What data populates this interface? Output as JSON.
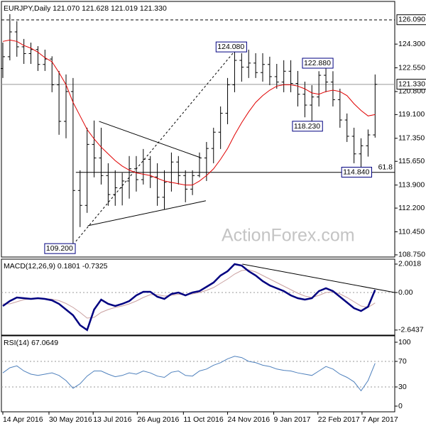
{
  "chart_data": [
    {
      "type": "candlestick",
      "title": "EURJPY,Daily  121.070 121.628 121.019 121.330",
      "watermark": "ActionForex.com",
      "x": [
        0,
        1,
        2,
        3,
        4,
        5,
        6,
        7,
        8,
        9,
        10,
        11,
        12,
        13,
        14,
        15,
        16,
        17,
        18,
        19,
        20,
        21,
        22,
        23,
        24,
        25,
        26,
        27,
        28,
        29,
        30,
        31,
        32,
        33,
        34,
        35,
        36,
        37,
        38,
        39,
        40,
        41,
        42,
        43,
        44,
        45,
        46,
        47,
        48,
        49,
        50,
        51,
        52,
        53
      ],
      "open": [
        122.5,
        123.37,
        125.2,
        124.1,
        123.6,
        123.9,
        122.8,
        123.2,
        121.3,
        118.6,
        120.8,
        113.5,
        112.4,
        116.9,
        115.9,
        114.6,
        113.2,
        113.7,
        114.2,
        115.1,
        114.3,
        115.8,
        114.5,
        113.0,
        114.1,
        115.6,
        114.6,
        113.6,
        114.6,
        115.9,
        116.6,
        117.8,
        119.2,
        121.3,
        123.1,
        122.6,
        122.9,
        122.2,
        122.8,
        121.9,
        121.5,
        122.3,
        121.4,
        120.6,
        119.8,
        120.4,
        122.0,
        121.5,
        120.2,
        118.7,
        117.5,
        116.2,
        116.8,
        117.6
      ],
      "high": [
        124.41,
        126.51,
        125.99,
        124.68,
        124.41,
        124.15,
        123.89,
        123.4,
        122.32,
        122.06,
        121.8,
        114.99,
        118.13,
        118.66,
        118.13,
        115.51,
        114.99,
        114.8,
        116.04,
        116.04,
        116.56,
        116.04,
        115.51,
        114.99,
        116.3,
        116.04,
        114.99,
        114.99,
        116.3,
        117.08,
        118.13,
        119.7,
        121.8,
        124.08,
        123.63,
        123.89,
        123.63,
        123.63,
        123.37,
        122.84,
        123.11,
        123.11,
        122.32,
        121.53,
        121.27,
        122.3,
        122.88,
        122.3,
        121.01,
        119.18,
        118.13,
        117.35,
        118.0,
        122.06
      ],
      "low": [
        121.8,
        123.1,
        123.37,
        122.84,
        122.84,
        122.32,
        122.32,
        120.75,
        117.61,
        117.35,
        109.2,
        110.8,
        111.85,
        114.47,
        113.94,
        112.37,
        112.37,
        112.4,
        112.9,
        113.42,
        113.94,
        113.68,
        112.37,
        112.11,
        113.42,
        113.94,
        112.63,
        113.16,
        114.47,
        114.2,
        115.51,
        116.56,
        118.39,
        120.75,
        121.53,
        121.8,
        121.8,
        121.53,
        121.27,
        121.01,
        120.75,
        120.75,
        119.7,
        118.9,
        118.23,
        119.7,
        120.75,
        119.7,
        118.13,
        117.08,
        115.51,
        114.84,
        116.0,
        117.4
      ],
      "close": [
        123.37,
        125.2,
        124.1,
        123.6,
        123.9,
        122.8,
        123.2,
        121.3,
        118.6,
        120.8,
        113.5,
        112.4,
        116.9,
        115.9,
        114.6,
        113.2,
        113.7,
        114.2,
        115.1,
        114.3,
        115.8,
        114.5,
        113.0,
        114.1,
        115.6,
        114.6,
        113.6,
        114.6,
        115.9,
        116.6,
        117.8,
        119.2,
        121.3,
        123.1,
        122.6,
        122.9,
        122.2,
        122.8,
        121.9,
        121.5,
        122.3,
        121.4,
        120.6,
        119.8,
        120.4,
        122.0,
        121.5,
        120.2,
        118.7,
        117.5,
        116.2,
        116.8,
        117.6,
        121.33
      ],
      "color": "#000000",
      "series": [
        {
          "color": "#e00000",
          "values": [
            124.5,
            124.6,
            124.5,
            124.2,
            124.0,
            123.7,
            123.3,
            123.0,
            122.2,
            121.3,
            120.0,
            119.0,
            118.0,
            117.3,
            116.7,
            116.2,
            115.7,
            115.3,
            115.0,
            114.8,
            114.7,
            114.6,
            114.4,
            114.2,
            114.1,
            114.0,
            113.9,
            113.9,
            114.2,
            114.6,
            115.1,
            115.8,
            116.6,
            117.6,
            118.5,
            119.3,
            120.0,
            120.5,
            120.9,
            121.2,
            121.3,
            121.3,
            121.2,
            121.0,
            120.7,
            120.6,
            120.8,
            120.9,
            120.8,
            120.5,
            119.9,
            119.4,
            119.0,
            119.1
          ]
        }
      ],
      "xlim": [
        -0.2,
        55.8
      ],
      "ylim": [
        108.59,
        127.45
      ],
      "yticks": [
        {
          "value": 124.3,
          "label": "124.300"
        },
        {
          "value": 122.55,
          "label": "122.550"
        },
        {
          "value": 120.8,
          "label": "120.800"
        },
        {
          "value": 119.1,
          "label": "119.100"
        },
        {
          "value": 117.35,
          "label": "117.350"
        },
        {
          "value": 115.65,
          "label": "115.650"
        },
        {
          "value": 113.9,
          "label": "113.900"
        },
        {
          "value": 112.2,
          "label": "112.200"
        },
        {
          "value": 110.45,
          "label": "110.450"
        },
        {
          "value": 108.75,
          "label": "108.750"
        }
      ],
      "hlines": [
        {
          "value": 126.09,
          "label": "126.090",
          "style": "dashed"
        },
        {
          "value": 121.33,
          "label": "121.330",
          "style": "gray"
        },
        {
          "value": 114.84,
          "start": 10.4,
          "label": "61.8",
          "style": "solid"
        }
      ],
      "annotations": [
        {
          "x": 34.7,
          "value": 124.08,
          "label": "124.080"
        },
        {
          "x": 47,
          "value": 122.88,
          "label": "122.880"
        },
        {
          "x": 45.5,
          "value": 118.23,
          "label": "118.230"
        },
        {
          "x": 52.5,
          "value": 114.84,
          "label": "114.840"
        },
        {
          "x": 10.3,
          "value": 109.2,
          "label": "109.200"
        }
      ],
      "trendlines": [
        {
          "x": [
            13.7,
            28.1
          ],
          "y": [
            118.6,
            115.93
          ]
        },
        {
          "x": [
            12.1,
            28.9
          ],
          "y": [
            110.9,
            112.74
          ]
        },
        {
          "x": [
            10.4,
            33.6
          ],
          "y": [
            109.75,
            124.15
          ],
          "dashed": true
        }
      ]
    },
    {
      "type": "line",
      "title": "MACD(12,26,9) 0.1801 -0.7325",
      "x": [
        0,
        1,
        2,
        3,
        4,
        5,
        6,
        7,
        8,
        9,
        10,
        11,
        12,
        13,
        14,
        15,
        16,
        17,
        18,
        19,
        20,
        21,
        22,
        23,
        24,
        25,
        26,
        27,
        28,
        29,
        30,
        31,
        32,
        33,
        34,
        35,
        36,
        37,
        38,
        39,
        40,
        41,
        42,
        43,
        44,
        45,
        46,
        47,
        48,
        49,
        50,
        51,
        52,
        53
      ],
      "series": [
        {
          "color": "#c9a0a0",
          "width": 1,
          "values": [
            -0.8,
            -0.8,
            -0.65,
            -0.5,
            -0.45,
            -0.43,
            -0.43,
            -0.47,
            -0.57,
            -0.77,
            -1.05,
            -1.4,
            -1.8,
            -1.75,
            -1.4,
            -1.2,
            -1.05,
            -0.95,
            -0.8,
            -0.6,
            -0.35,
            -0.15,
            -0.15,
            -0.25,
            -0.2,
            -0.12,
            -0.15,
            -0.1,
            0.0,
            0.15,
            0.35,
            0.65,
            0.95,
            1.3,
            1.55,
            1.6,
            1.45,
            1.2,
            0.95,
            0.7,
            0.45,
            0.2,
            -0.05,
            -0.25,
            -0.35,
            -0.2,
            0.0,
            0.05,
            -0.1,
            -0.35,
            -0.65,
            -0.95,
            -1.05,
            -0.7325
          ]
        },
        {
          "color": "#000080",
          "width": 2.5,
          "values": [
            -0.95,
            -0.6,
            -0.35,
            -0.4,
            -0.45,
            -0.4,
            -0.45,
            -0.55,
            -0.8,
            -1.2,
            -1.6,
            -2.3,
            -2.64,
            -1.2,
            -0.5,
            -0.8,
            -0.95,
            -0.8,
            -0.6,
            -0.2,
            0.05,
            0.05,
            -0.3,
            -0.45,
            -0.1,
            0.0,
            -0.2,
            0.0,
            0.1,
            0.4,
            0.7,
            1.2,
            1.5,
            2.0,
            1.9,
            1.5,
            1.2,
            0.8,
            0.5,
            0.3,
            0.1,
            -0.2,
            -0.4,
            -0.5,
            -0.4,
            0.1,
            0.3,
            0.1,
            -0.3,
            -0.7,
            -1.1,
            -1.3,
            -1.0,
            0.1801
          ]
        }
      ],
      "xlim": [
        -0.2,
        55.8
      ],
      "ylim": [
        -3.0,
        2.35
      ],
      "yticks": [
        2.0018,
        {
          "value": 0,
          "label": "0.00"
        },
        -2.6437
      ],
      "reference_lines": [
        0
      ],
      "trendlines": [
        {
          "x": [
            34.1,
            55.8
          ],
          "y": [
            2.0,
            0.0
          ]
        }
      ]
    },
    {
      "type": "line",
      "title": "RSI(14) 67.0649",
      "x": [
        0,
        1,
        2,
        3,
        4,
        5,
        6,
        7,
        8,
        9,
        10,
        11,
        12,
        13,
        14,
        15,
        16,
        17,
        18,
        19,
        20,
        21,
        22,
        23,
        24,
        25,
        26,
        27,
        28,
        29,
        30,
        31,
        32,
        33,
        34,
        35,
        36,
        37,
        38,
        39,
        40,
        41,
        42,
        43,
        44,
        45,
        46,
        47,
        48,
        49,
        50,
        51,
        52,
        53
      ],
      "series": [
        {
          "color": "#4f81bd",
          "width": 1,
          "values": [
            52,
            60,
            63,
            55,
            50,
            48,
            50,
            52,
            48,
            40,
            28,
            35,
            47,
            55,
            55,
            50,
            46,
            48,
            52,
            50,
            55,
            52,
            47,
            45,
            53,
            55,
            48,
            47,
            55,
            58,
            64,
            68,
            74,
            78,
            76,
            70,
            68,
            64,
            62,
            58,
            56,
            55,
            52,
            50,
            48,
            55,
            62,
            58,
            50,
            45,
            38,
            24,
            40,
            67.0649
          ]
        }
      ],
      "xlim": [
        -0.2,
        55.8
      ],
      "ylim": [
        -8.9,
        110
      ],
      "yticks": [
        100,
        70,
        30,
        0
      ],
      "reference_lines": [
        70,
        30
      ],
      "xticks": [
        {
          "value": 0,
          "label": "14 Apr 2016"
        },
        {
          "value": 6.57,
          "label": "30 May 2016"
        },
        {
          "value": 12.86,
          "label": "13 Jul 2016"
        },
        {
          "value": 19.14,
          "label": "26 Aug 2016"
        },
        {
          "value": 25.71,
          "label": "11 Oct 2016"
        },
        {
          "value": 32,
          "label": "24 Nov 2016"
        },
        {
          "value": 38.57,
          "label": "9 Jan 2017"
        },
        {
          "value": 44.86,
          "label": "22 Feb 2017"
        },
        {
          "value": 51.14,
          "label": "7 Apr 2017"
        }
      ]
    }
  ]
}
